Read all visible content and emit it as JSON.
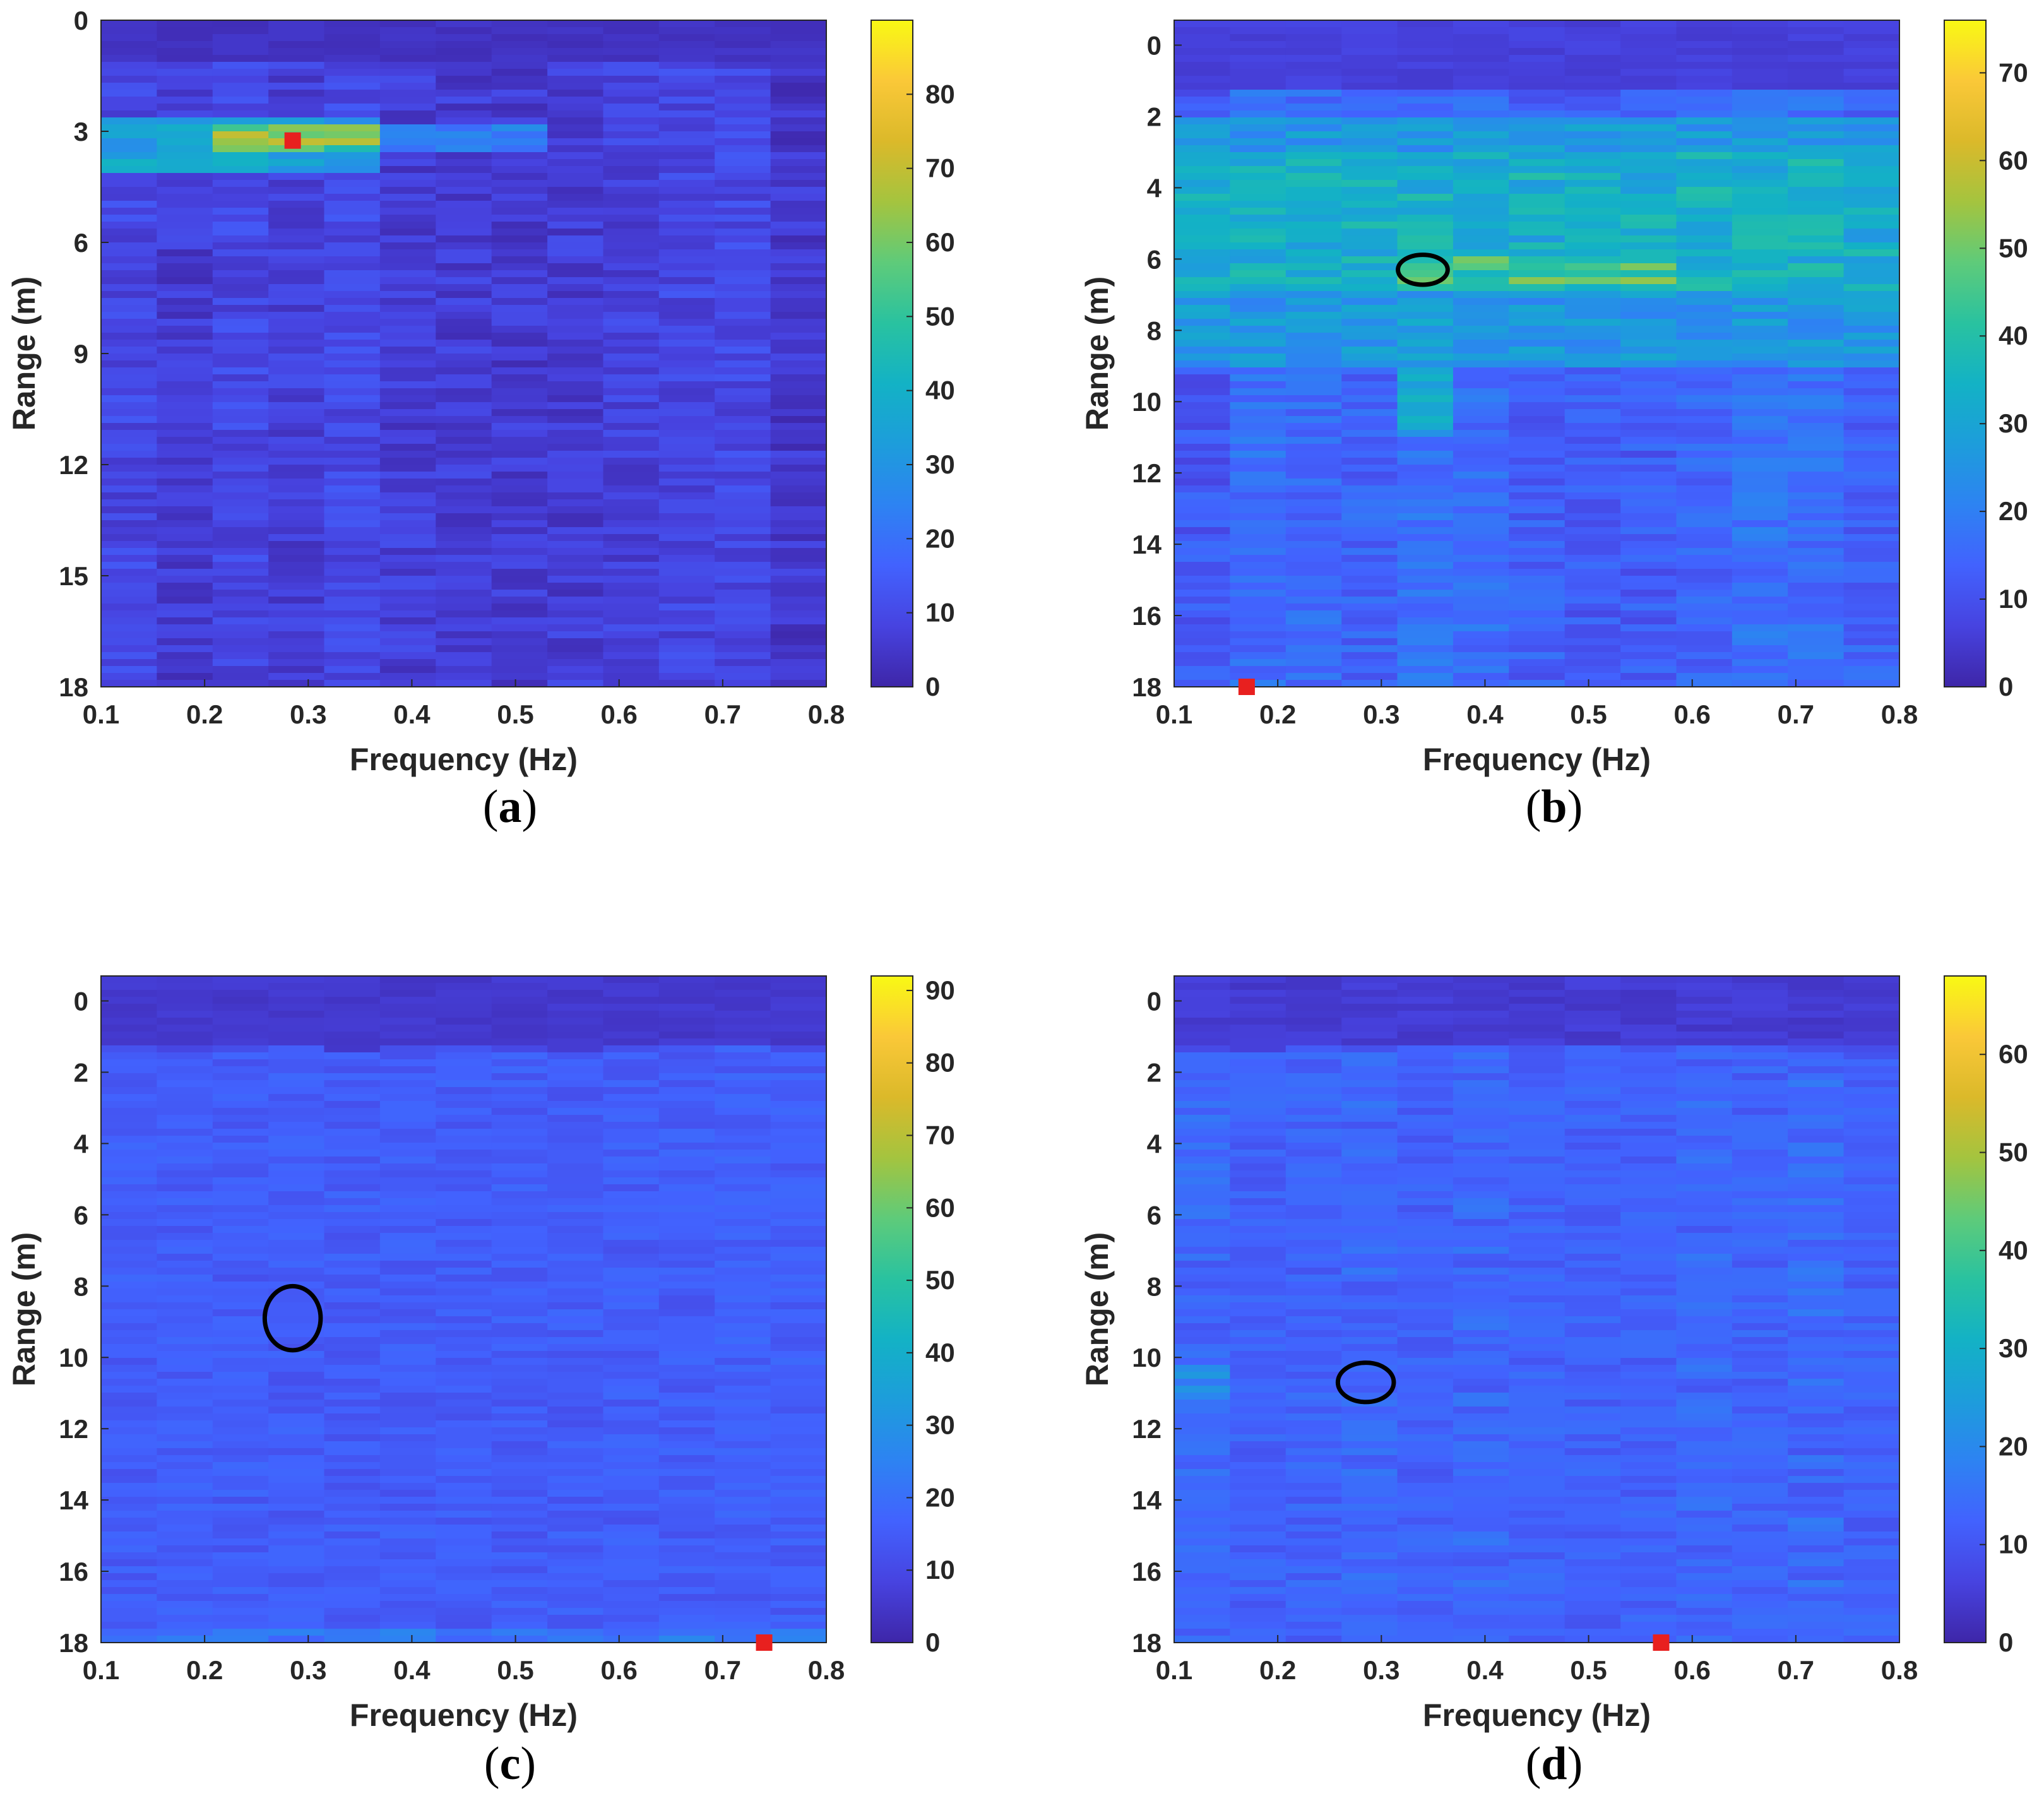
{
  "figure": {
    "colors": {
      "colormap": [
        "#3e26a8",
        "#4743e0",
        "#4262fe",
        "#2d83f2",
        "#1d9ddb",
        "#13b2c5",
        "#29c2a0",
        "#5ecb7a",
        "#a4c43f",
        "#dbb92a",
        "#fac838",
        "#f9f914"
      ],
      "marker": "#e8201f",
      "ellipse": "#000000"
    },
    "panels": [
      {
        "id": "a",
        "caption_letter": "a",
        "xlabel": "Frequency (Hz)",
        "ylabel": "Range (m)",
        "xticks": [
          "0.1",
          "0.2",
          "0.3",
          "0.4",
          "0.5",
          "0.6",
          "0.7",
          "0.8"
        ],
        "yticks": [
          "0",
          "3",
          "6",
          "9",
          "12",
          "15",
          "18"
        ],
        "colorbar_ticks": [
          "0",
          "10",
          "20",
          "30",
          "40",
          "50",
          "60",
          "70",
          "80"
        ],
        "marker_label": "red-marker",
        "has_ellipse": false
      },
      {
        "id": "b",
        "caption_letter": "b",
        "xlabel": "Frequency (Hz)",
        "ylabel": "Range (m)",
        "xticks": [
          "0.1",
          "0.2",
          "0.3",
          "0.4",
          "0.5",
          "0.6",
          "0.7",
          "0.8"
        ],
        "yticks": [
          "0",
          "2",
          "4",
          "6",
          "8",
          "10",
          "12",
          "14",
          "16",
          "18"
        ],
        "colorbar_ticks": [
          "0",
          "10",
          "20",
          "30",
          "40",
          "50",
          "60",
          "70"
        ],
        "marker_label": "red-marker",
        "has_ellipse": true
      },
      {
        "id": "c",
        "caption_letter": "c",
        "xlabel": "Frequency (Hz)",
        "ylabel": "Range (m)",
        "xticks": [
          "0.1",
          "0.2",
          "0.3",
          "0.4",
          "0.5",
          "0.6",
          "0.7",
          "0.8"
        ],
        "yticks": [
          "0",
          "2",
          "4",
          "6",
          "8",
          "10",
          "12",
          "14",
          "16",
          "18"
        ],
        "colorbar_ticks": [
          "0",
          "10",
          "20",
          "30",
          "40",
          "50",
          "60",
          "70",
          "80",
          "90"
        ],
        "marker_label": "red-marker",
        "has_ellipse": true
      },
      {
        "id": "d",
        "caption_letter": "d",
        "xlabel": "Frequency (Hz)",
        "ylabel": "Range (m)",
        "xticks": [
          "0.1",
          "0.2",
          "0.3",
          "0.4",
          "0.5",
          "0.6",
          "0.7",
          "0.8"
        ],
        "yticks": [
          "0",
          "2",
          "4",
          "6",
          "8",
          "10",
          "12",
          "14",
          "16",
          "18"
        ],
        "colorbar_ticks": [
          "0",
          "10",
          "20",
          "30",
          "40",
          "50",
          "60"
        ],
        "marker_label": "red-marker",
        "has_ellipse": true
      }
    ]
  },
  "chart_data": [
    {
      "type": "heatmap",
      "title": "(a)",
      "xlabel": "Frequency (Hz)",
      "ylabel": "Range (m)",
      "xlim": [
        0.1,
        0.8
      ],
      "ylim": [
        0,
        18
      ],
      "yticks": [
        0,
        3,
        6,
        9,
        12,
        15,
        18
      ],
      "clim": [
        0,
        90
      ],
      "colorbar_ticks": [
        0,
        10,
        20,
        30,
        40,
        50,
        60,
        70,
        80
      ],
      "frequency_bins": 13,
      "range_bins": 96,
      "background_level": 8,
      "hotspots": [
        {
          "f_min": 0.1,
          "f_max": 0.37,
          "r_min": 2.7,
          "r_max": 4.1,
          "level": 34
        },
        {
          "f_min": 0.2,
          "f_max": 0.37,
          "r_min": 2.8,
          "r_max": 3.5,
          "level": 58
        },
        {
          "f_min": 0.37,
          "f_max": 0.54,
          "r_min": 2.8,
          "r_max": 3.6,
          "level": 24
        }
      ],
      "marker": {
        "x": 0.285,
        "y": 3.25
      },
      "ellipse": null
    },
    {
      "type": "heatmap",
      "title": "(b)",
      "xlabel": "Frequency (Hz)",
      "ylabel": "Range (m)",
      "xlim": [
        0.1,
        0.8
      ],
      "ylim": [
        -0.7,
        18
      ],
      "yticks": [
        0,
        2,
        4,
        6,
        8,
        10,
        12,
        14,
        16,
        18
      ],
      "clim": [
        0,
        76
      ],
      "colorbar_ticks": [
        0,
        10,
        20,
        30,
        40,
        50,
        60,
        70
      ],
      "frequency_bins": 13,
      "range_bins": 96,
      "background_level": 14,
      "hotspots": [
        {
          "f_min": 0.1,
          "f_max": 0.8,
          "r_min": 2.0,
          "r_max": 9.0,
          "level": 26
        },
        {
          "f_min": 0.1,
          "f_max": 0.8,
          "r_min": 3.0,
          "r_max": 6.8,
          "level": 33
        },
        {
          "f_min": 0.31,
          "f_max": 0.6,
          "r_min": 5.9,
          "r_max": 6.8,
          "level": 44
        },
        {
          "f_min": 0.31,
          "f_max": 0.37,
          "r_min": 7.0,
          "r_max": 11.0,
          "level": 30
        }
      ],
      "marker": {
        "x": 0.17,
        "y": 18
      },
      "ellipse": {
        "cx": 0.34,
        "cy": 6.3,
        "rx": 0.024,
        "ry": 0.42
      }
    },
    {
      "type": "heatmap",
      "title": "(c)",
      "xlabel": "Frequency (Hz)",
      "ylabel": "Range (m)",
      "xlim": [
        0.1,
        0.8
      ],
      "ylim": [
        -0.7,
        18
      ],
      "yticks": [
        0,
        2,
        4,
        6,
        8,
        10,
        12,
        14,
        16,
        18
      ],
      "clim": [
        0,
        92
      ],
      "colorbar_ticks": [
        0,
        10,
        20,
        30,
        40,
        50,
        60,
        70,
        80,
        90
      ],
      "frequency_bins": 13,
      "range_bins": 96,
      "background_level": 12,
      "hotspots": [
        {
          "f_min": 0.1,
          "f_max": 0.8,
          "r_min": 1.5,
          "r_max": 18.0,
          "level": 15
        },
        {
          "f_min": 0.1,
          "f_max": 0.8,
          "r_min": 17.6,
          "r_max": 18.0,
          "level": 22
        }
      ],
      "marker": {
        "x": 0.74,
        "y": 18
      },
      "ellipse": {
        "cx": 0.285,
        "cy": 8.9,
        "rx": 0.027,
        "ry": 0.9
      }
    },
    {
      "type": "heatmap",
      "title": "(d)",
      "xlabel": "Frequency (Hz)",
      "ylabel": "Range (m)",
      "xlim": [
        0.1,
        0.8
      ],
      "ylim": [
        -0.7,
        18
      ],
      "yticks": [
        0,
        2,
        4,
        6,
        8,
        10,
        12,
        14,
        16,
        18
      ],
      "clim": [
        0,
        68
      ],
      "colorbar_ticks": [
        0,
        10,
        20,
        30,
        40,
        50,
        60
      ],
      "frequency_bins": 13,
      "range_bins": 96,
      "background_level": 10,
      "hotspots": [
        {
          "f_min": 0.1,
          "f_max": 0.8,
          "r_min": 1.5,
          "r_max": 18.0,
          "level": 12
        },
        {
          "f_min": 0.1,
          "f_max": 0.15,
          "r_min": 10.3,
          "r_max": 11.2,
          "level": 20
        }
      ],
      "marker": {
        "x": 0.57,
        "y": 18
      },
      "ellipse": {
        "cx": 0.285,
        "cy": 10.7,
        "rx": 0.027,
        "ry": 0.55
      }
    }
  ]
}
